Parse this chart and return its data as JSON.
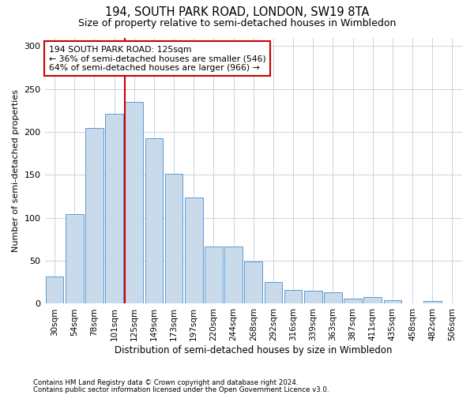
{
  "title1": "194, SOUTH PARK ROAD, LONDON, SW19 8TA",
  "title2": "Size of property relative to semi-detached houses in Wimbledon",
  "xlabel": "Distribution of semi-detached houses by size in Wimbledon",
  "ylabel": "Number of semi-detached properties",
  "categories": [
    "30sqm",
    "54sqm",
    "78sqm",
    "101sqm",
    "125sqm",
    "149sqm",
    "173sqm",
    "197sqm",
    "220sqm",
    "244sqm",
    "268sqm",
    "292sqm",
    "316sqm",
    "339sqm",
    "363sqm",
    "387sqm",
    "411sqm",
    "435sqm",
    "458sqm",
    "482sqm",
    "506sqm"
  ],
  "values": [
    32,
    104,
    205,
    221,
    235,
    193,
    151,
    124,
    67,
    67,
    49,
    25,
    16,
    15,
    13,
    6,
    8,
    4,
    0,
    3,
    0
  ],
  "bar_color": "#c9daea",
  "bar_edge_color": "#5b9bd5",
  "property_line_x": 4,
  "annotation_text": "194 SOUTH PARK ROAD: 125sqm\n← 36% of semi-detached houses are smaller (546)\n64% of semi-detached houses are larger (966) →",
  "vline_color": "#cc0000",
  "annotation_box_color": "#ffffff",
  "annotation_box_edge": "#cc0000",
  "ylim": [
    0,
    310
  ],
  "footer1": "Contains HM Land Registry data © Crown copyright and database right 2024.",
  "footer2": "Contains public sector information licensed under the Open Government Licence v3.0.",
  "bg_color": "#ffffff",
  "grid_color": "#c8d4e3"
}
